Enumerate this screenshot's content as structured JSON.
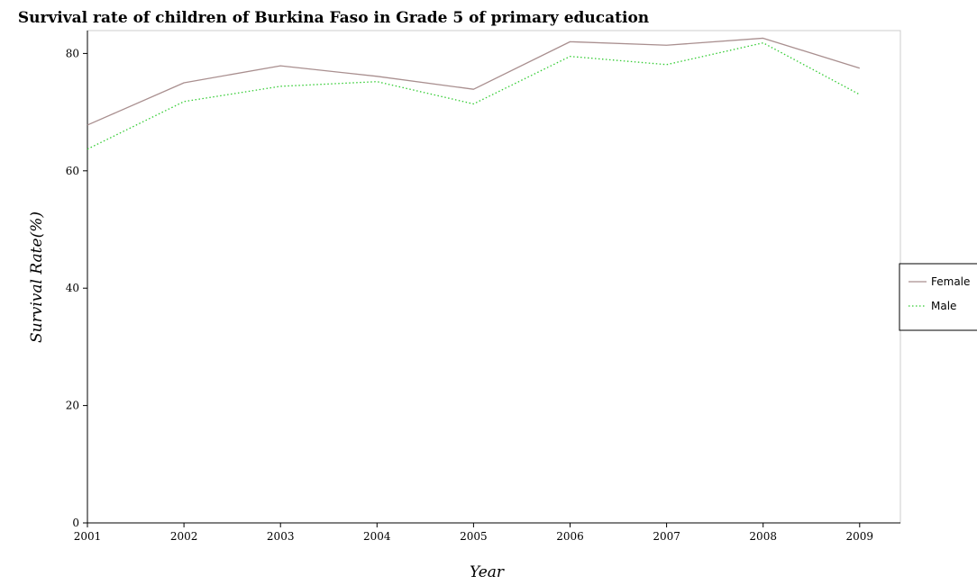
{
  "chart_data": {
    "type": "line",
    "title": "Survival rate of children of Burkina Faso in Grade 5 of primary education",
    "xlabel": "Year",
    "ylabel": "Survival Rate(%)",
    "categories": [
      "2001",
      "2002",
      "2003",
      "2004",
      "2005",
      "2006",
      "2007",
      "2008",
      "2009"
    ],
    "ylim": [
      0,
      85
    ],
    "yticks": [
      0,
      20,
      40,
      60,
      80
    ],
    "grid": false,
    "legend_position": "right",
    "series": [
      {
        "name": "Female",
        "color": "#a98f8f",
        "dash": "solid",
        "values": [
          67.8,
          75.0,
          77.9,
          76.1,
          73.9,
          82.0,
          81.4,
          82.6,
          77.5
        ]
      },
      {
        "name": "Male",
        "color": "#33cc33",
        "dash": "dotted",
        "values": [
          63.7,
          71.8,
          74.4,
          75.2,
          71.4,
          79.5,
          78.1,
          81.8,
          73.0
        ]
      }
    ]
  }
}
